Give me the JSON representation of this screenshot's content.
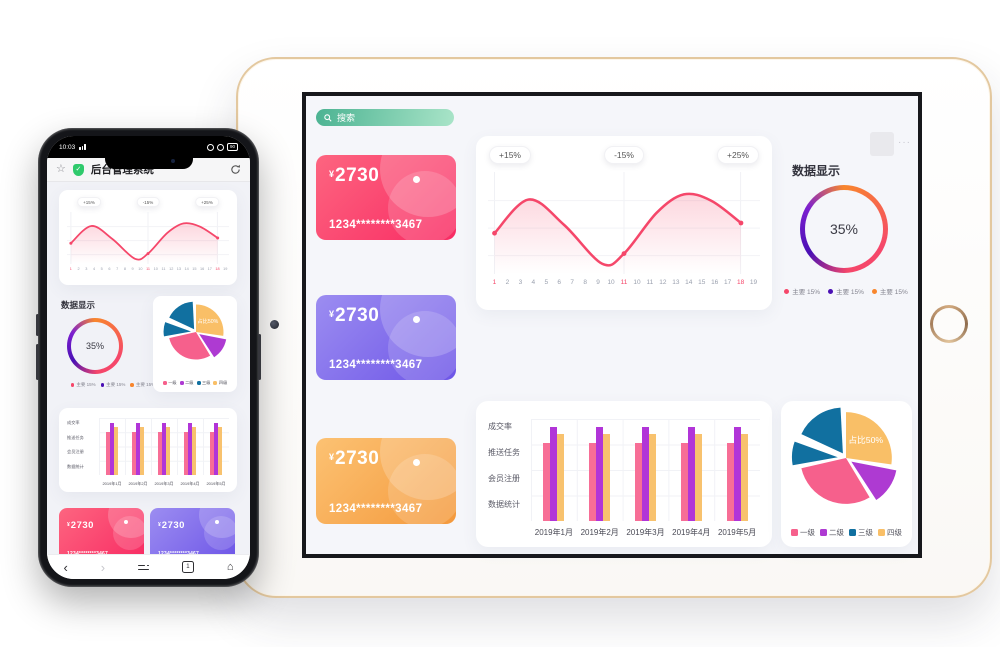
{
  "phone": {
    "status_time": "10:03",
    "battery": "90",
    "browser_title": "后台管理系统",
    "tab_count": "1"
  },
  "tablet": {
    "search_placeholder": "搜索",
    "more": "···"
  },
  "sections": {
    "data_display": "数据显示"
  },
  "bank_card": {
    "currency": "¥",
    "amount": "2730",
    "masked_number": "1234********3467"
  },
  "chart_data": [
    {
      "id": "trend-wave",
      "type": "line",
      "badges": [
        {
          "label": "+15%",
          "index": 0
        },
        {
          "label": "-15%",
          "index": 10
        },
        {
          "label": "+25%",
          "index": 19
        }
      ],
      "x_labels": [
        "1",
        "2",
        "3",
        "4",
        "5",
        "6",
        "7",
        "8",
        "9",
        "10",
        "11",
        "10",
        "11",
        "12",
        "13",
        "14",
        "15",
        "16",
        "17",
        "18",
        "19"
      ],
      "highlight_indexes": [
        0,
        10,
        19
      ],
      "line_color": "#F5476A",
      "fill_color": "#F5476A",
      "points": [
        [
          0.024,
          0.6
        ],
        [
          0.15,
          0.27
        ],
        [
          0.28,
          0.52
        ],
        [
          0.42,
          0.9
        ],
        [
          0.5,
          0.8
        ],
        [
          0.62,
          0.4
        ],
        [
          0.72,
          0.22
        ],
        [
          0.82,
          0.28
        ],
        [
          0.93,
          0.5
        ]
      ],
      "dot_point_indexes": [
        0,
        4,
        8
      ]
    },
    {
      "id": "data-display-donut",
      "type": "donut",
      "center_label": "35%",
      "ring_colors": [
        "#F8862D",
        "#F5476A",
        "#4A10B4",
        "#7C1FD0"
      ],
      "legend": [
        {
          "label": "主要",
          "value": "15%",
          "color": "#F5476A"
        },
        {
          "label": "主要",
          "value": "15%",
          "color": "#4A10B4"
        },
        {
          "label": "主要",
          "value": "15%",
          "color": "#F8862D"
        }
      ]
    },
    {
      "id": "monthly-bars",
      "type": "bar",
      "categories": [
        "2019年1月",
        "2019年2月",
        "2019年3月",
        "2019年4月",
        "2019年5月"
      ],
      "row_labels": [
        "成交率",
        "推送任务",
        "会员注册",
        "数据统计"
      ],
      "series": [
        {
          "name": "series-pink",
          "color": "#F76E96",
          "value": 0.76
        },
        {
          "name": "series-purple",
          "color": "#B135D8",
          "value": 0.92
        },
        {
          "name": "series-orange",
          "color": "#F8C26E",
          "value": 0.85
        }
      ]
    },
    {
      "id": "level-pie",
      "type": "pie",
      "label": "占比50%",
      "label_angle": 48,
      "legend": [
        {
          "label": "一级",
          "color": "#F6608C"
        },
        {
          "label": "二级",
          "color": "#AE3AD2"
        },
        {
          "label": "三级",
          "color": "#1170A0"
        },
        {
          "label": "四级",
          "color": "#F9BF67"
        }
      ],
      "slices": [
        {
          "legend": "四级",
          "color": "#F9BF67",
          "start": 0,
          "end": 98,
          "explode": 0
        },
        {
          "legend": "二级",
          "color": "#AE3AD2",
          "start": 101,
          "end": 147,
          "explode": 7
        },
        {
          "legend": "一级",
          "color": "#F6608C",
          "start": 149,
          "end": 257,
          "explode": 0
        },
        {
          "legend": "三级",
          "color": "#1170A0",
          "start": 260,
          "end": 290,
          "explode": 9
        },
        {
          "legend": "三级",
          "color": "#1170A0",
          "start": 295,
          "end": 357,
          "explode": 6
        }
      ]
    }
  ]
}
